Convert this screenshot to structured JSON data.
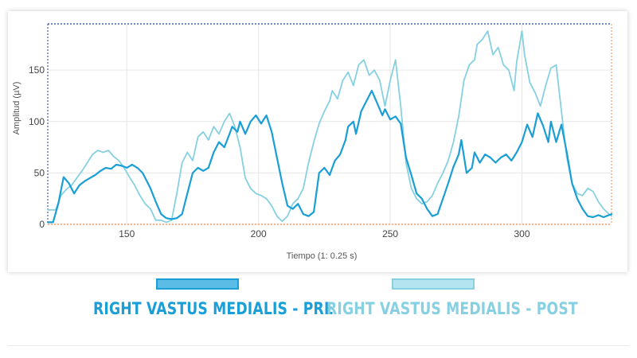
{
  "chart_data": {
    "type": "line",
    "title": "",
    "xlabel": "Tiempo (1: 0.25 s)",
    "ylabel": "Amplitud (µV)",
    "xlim": [
      120,
      334
    ],
    "ylim": [
      0,
      195
    ],
    "xticks": [
      150,
      200,
      250,
      300
    ],
    "yticks": [
      0,
      50,
      100,
      150
    ],
    "grid": true,
    "series": [
      {
        "name": "RIGHT VASTUS MEDIALIS  - PRE",
        "color": "#1a9ed6",
        "points": [
          [
            120,
            2
          ],
          [
            122,
            2
          ],
          [
            124,
            20
          ],
          [
            126,
            46
          ],
          [
            128,
            40
          ],
          [
            130,
            30
          ],
          [
            132,
            38
          ],
          [
            134,
            42
          ],
          [
            136,
            45
          ],
          [
            138,
            48
          ],
          [
            140,
            52
          ],
          [
            142,
            55
          ],
          [
            144,
            54
          ],
          [
            146,
            58
          ],
          [
            148,
            57
          ],
          [
            150,
            55
          ],
          [
            152,
            58
          ],
          [
            154,
            55
          ],
          [
            156,
            50
          ],
          [
            157,
            45
          ],
          [
            159,
            35
          ],
          [
            161,
            22
          ],
          [
            163,
            10
          ],
          [
            165,
            6
          ],
          [
            167,
            5
          ],
          [
            169,
            6
          ],
          [
            171,
            10
          ],
          [
            173,
            30
          ],
          [
            175,
            50
          ],
          [
            177,
            55
          ],
          [
            179,
            52
          ],
          [
            181,
            55
          ],
          [
            183,
            70
          ],
          [
            185,
            80
          ],
          [
            187,
            75
          ],
          [
            189,
            88
          ],
          [
            190,
            95
          ],
          [
            192,
            90
          ],
          [
            193,
            100
          ],
          [
            195,
            88
          ],
          [
            197,
            100
          ],
          [
            199,
            106
          ],
          [
            201,
            98
          ],
          [
            203,
            106
          ],
          [
            205,
            90
          ],
          [
            207,
            65
          ],
          [
            209,
            40
          ],
          [
            211,
            18
          ],
          [
            213,
            15
          ],
          [
            215,
            20
          ],
          [
            217,
            10
          ],
          [
            219,
            8
          ],
          [
            221,
            12
          ],
          [
            223,
            50
          ],
          [
            225,
            55
          ],
          [
            227,
            48
          ],
          [
            229,
            62
          ],
          [
            231,
            68
          ],
          [
            233,
            82
          ],
          [
            234,
            95
          ],
          [
            236,
            100
          ],
          [
            237,
            88
          ],
          [
            239,
            110
          ],
          [
            241,
            120
          ],
          [
            243,
            130
          ],
          [
            245,
            118
          ],
          [
            247,
            106
          ],
          [
            248,
            112
          ],
          [
            250,
            102
          ],
          [
            252,
            105
          ],
          [
            254,
            98
          ],
          [
            256,
            65
          ],
          [
            258,
            48
          ],
          [
            260,
            30
          ],
          [
            262,
            25
          ],
          [
            264,
            15
          ],
          [
            266,
            8
          ],
          [
            268,
            10
          ],
          [
            270,
            25
          ],
          [
            272,
            40
          ],
          [
            274,
            56
          ],
          [
            276,
            68
          ],
          [
            277,
            82
          ],
          [
            279,
            50
          ],
          [
            281,
            55
          ],
          [
            282,
            70
          ],
          [
            284,
            60
          ],
          [
            286,
            68
          ],
          [
            288,
            65
          ],
          [
            290,
            60
          ],
          [
            292,
            65
          ],
          [
            294,
            68
          ],
          [
            296,
            62
          ],
          [
            298,
            70
          ],
          [
            300,
            80
          ],
          [
            302,
            97
          ],
          [
            304,
            85
          ],
          [
            306,
            108
          ],
          [
            308,
            96
          ],
          [
            310,
            80
          ],
          [
            311,
            100
          ],
          [
            313,
            80
          ],
          [
            315,
            97
          ],
          [
            317,
            70
          ],
          [
            319,
            40
          ],
          [
            321,
            25
          ],
          [
            323,
            15
          ],
          [
            325,
            8
          ],
          [
            327,
            7
          ],
          [
            329,
            9
          ],
          [
            331,
            7
          ],
          [
            334,
            10
          ]
        ]
      },
      {
        "name": "RIGHT VASTUS MEDIALIS  - POST",
        "color": "#86d0e2",
        "points": [
          [
            120,
            14
          ],
          [
            123,
            14
          ],
          [
            125,
            28
          ],
          [
            127,
            34
          ],
          [
            129,
            38
          ],
          [
            131,
            45
          ],
          [
            133,
            52
          ],
          [
            135,
            60
          ],
          [
            137,
            68
          ],
          [
            139,
            72
          ],
          [
            141,
            70
          ],
          [
            143,
            72
          ],
          [
            145,
            66
          ],
          [
            147,
            62
          ],
          [
            149,
            55
          ],
          [
            151,
            46
          ],
          [
            153,
            38
          ],
          [
            155,
            28
          ],
          [
            157,
            20
          ],
          [
            159,
            15
          ],
          [
            161,
            4
          ],
          [
            163,
            4
          ],
          [
            165,
            2
          ],
          [
            167,
            4
          ],
          [
            169,
            30
          ],
          [
            171,
            60
          ],
          [
            173,
            70
          ],
          [
            175,
            62
          ],
          [
            177,
            85
          ],
          [
            179,
            90
          ],
          [
            181,
            82
          ],
          [
            183,
            95
          ],
          [
            185,
            88
          ],
          [
            187,
            100
          ],
          [
            189,
            108
          ],
          [
            191,
            95
          ],
          [
            193,
            75
          ],
          [
            195,
            45
          ],
          [
            197,
            35
          ],
          [
            199,
            30
          ],
          [
            201,
            28
          ],
          [
            203,
            25
          ],
          [
            205,
            18
          ],
          [
            207,
            8
          ],
          [
            209,
            3
          ],
          [
            211,
            8
          ],
          [
            213,
            20
          ],
          [
            215,
            25
          ],
          [
            217,
            35
          ],
          [
            219,
            60
          ],
          [
            221,
            80
          ],
          [
            223,
            98
          ],
          [
            225,
            110
          ],
          [
            227,
            120
          ],
          [
            228,
            130
          ],
          [
            230,
            122
          ],
          [
            232,
            140
          ],
          [
            234,
            148
          ],
          [
            236,
            135
          ],
          [
            238,
            155
          ],
          [
            240,
            160
          ],
          [
            242,
            145
          ],
          [
            244,
            150
          ],
          [
            246,
            140
          ],
          [
            248,
            115
          ],
          [
            250,
            140
          ],
          [
            252,
            160
          ],
          [
            254,
            115
          ],
          [
            256,
            60
          ],
          [
            258,
            35
          ],
          [
            260,
            25
          ],
          [
            262,
            20
          ],
          [
            264,
            22
          ],
          [
            266,
            28
          ],
          [
            268,
            40
          ],
          [
            270,
            50
          ],
          [
            272,
            62
          ],
          [
            274,
            80
          ],
          [
            276,
            105
          ],
          [
            278,
            140
          ],
          [
            280,
            155
          ],
          [
            282,
            160
          ],
          [
            283,
            175
          ],
          [
            285,
            180
          ],
          [
            287,
            188
          ],
          [
            289,
            165
          ],
          [
            291,
            172
          ],
          [
            293,
            155
          ],
          [
            295,
            150
          ],
          [
            297,
            130
          ],
          [
            298,
            158
          ],
          [
            300,
            188
          ],
          [
            301,
            165
          ],
          [
            303,
            138
          ],
          [
            305,
            128
          ],
          [
            307,
            115
          ],
          [
            309,
            135
          ],
          [
            311,
            152
          ],
          [
            313,
            155
          ],
          [
            315,
            110
          ],
          [
            317,
            65
          ],
          [
            319,
            40
          ],
          [
            321,
            30
          ],
          [
            323,
            28
          ],
          [
            325,
            35
          ],
          [
            327,
            32
          ],
          [
            329,
            22
          ],
          [
            331,
            15
          ],
          [
            333,
            10
          ],
          [
            334,
            8
          ]
        ]
      }
    ]
  },
  "legend": {
    "pre_label": "RIGHT VASTUS MEDIALIS  - PRE",
    "post_label": "RIGHT VASTUS MEDIALIS  - POST",
    "pre_color": "#1a9ed6",
    "post_color": "#86d0e2"
  }
}
